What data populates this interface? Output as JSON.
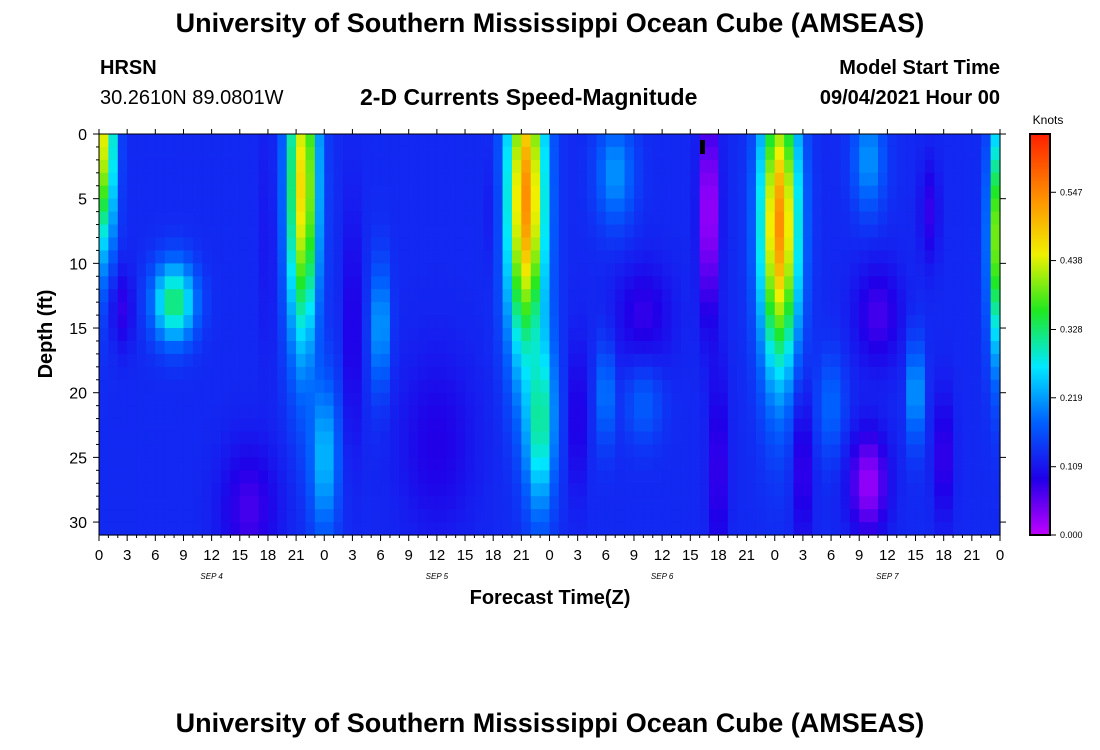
{
  "header": {
    "title": "University of Southern Mississippi Ocean Cube (AMSEAS)",
    "footer_title": "University of Southern Mississippi Ocean Cube (AMSEAS)",
    "station_name": "HRSN",
    "station_coords": "30.2610N  89.0801W",
    "plot_title": "2-D Currents Speed-Magnitude",
    "model_label": "Model Start Time",
    "model_time": "09/04/2021 Hour 00"
  },
  "chart_data": {
    "type": "heatmap",
    "title": "2-D Currents Speed-Magnitude",
    "xlabel": "Forecast Time(Z)",
    "ylabel": "Depth (ft)",
    "xlim": [
      0,
      96
    ],
    "ylim": [
      0,
      31
    ],
    "y_inverted": true,
    "x_tick_labels": [
      "0",
      "3",
      "6",
      "9",
      "12",
      "15",
      "18",
      "21",
      "0",
      "3",
      "6",
      "9",
      "12",
      "15",
      "18",
      "21",
      "0",
      "3",
      "6",
      "9",
      "12",
      "15",
      "18",
      "21",
      "0",
      "3",
      "6",
      "9",
      "12",
      "15",
      "18",
      "21",
      "0"
    ],
    "y_ticks": [
      0,
      5,
      10,
      15,
      20,
      25,
      30
    ],
    "day_labels": [
      {
        "label": "SEP 4",
        "hour": 12
      },
      {
        "label": "SEP 5",
        "hour": 36
      },
      {
        "label": "SEP 6",
        "hour": 60
      },
      {
        "label": "SEP 7",
        "hour": 84
      }
    ],
    "colorbar": {
      "unit": "Knots",
      "ticks": [
        "0.547",
        "0.438",
        "0.328",
        "0.219",
        "0.109",
        "0.000"
      ],
      "tick_values": [
        0.547,
        0.438,
        0.328,
        0.219,
        0.109,
        0.0
      ],
      "max": 0.64
    },
    "features": [
      {
        "hour": 0.5,
        "depth": 0,
        "speed": 0.45,
        "sx": 1.2,
        "sy": 9
      },
      {
        "hour": 2.5,
        "depth": 13.5,
        "speed": 0.08,
        "sx": 1.2,
        "sy": 3
      },
      {
        "hour": 8,
        "depth": 13,
        "speed": 0.34,
        "sx": 2.2,
        "sy": 3
      },
      {
        "hour": 16,
        "depth": 29,
        "speed": 0.07,
        "sx": 3,
        "sy": 5
      },
      {
        "hour": 18,
        "depth": 8,
        "speed": 0.1,
        "sx": 0.6,
        "sy": 10
      },
      {
        "hour": 21.7,
        "depth": 4,
        "speed": 0.48,
        "sx": 1.6,
        "sy": 12
      },
      {
        "hour": 24,
        "depth": 25,
        "speed": 0.25,
        "sx": 1.5,
        "sy": 6
      },
      {
        "hour": 27,
        "depth": 15,
        "speed": 0.07,
        "sx": 0.7,
        "sy": 9
      },
      {
        "hour": 30,
        "depth": 15,
        "speed": 0.24,
        "sx": 1,
        "sy": 5
      },
      {
        "hour": 36,
        "depth": 24,
        "speed": 0.09,
        "sx": 4,
        "sy": 7
      },
      {
        "hour": 42,
        "depth": 6,
        "speed": 0.1,
        "sx": 0.7,
        "sy": 5
      },
      {
        "hour": 45.5,
        "depth": 5,
        "speed": 0.55,
        "sx": 2,
        "sy": 12
      },
      {
        "hour": 47,
        "depth": 22,
        "speed": 0.33,
        "sx": 1.5,
        "sy": 7
      },
      {
        "hour": 51,
        "depth": 22,
        "speed": 0.07,
        "sx": 0.7,
        "sy": 6
      },
      {
        "hour": 54,
        "depth": 20,
        "speed": 0.22,
        "sx": 0.8,
        "sy": 4
      },
      {
        "hour": 58,
        "depth": 14,
        "speed": 0.08,
        "sx": 3,
        "sy": 4
      },
      {
        "hour": 58,
        "depth": 21,
        "speed": 0.18,
        "sx": 2,
        "sy": 3
      },
      {
        "hour": 55,
        "depth": 3,
        "speed": 0.22,
        "sx": 2,
        "sy": 4
      },
      {
        "hour": 65,
        "depth": 6,
        "speed": 0.0,
        "sx": 1,
        "sy": 8
      },
      {
        "hour": 66,
        "depth": 26,
        "speed": 0.07,
        "sx": 1,
        "sy": 8
      },
      {
        "hour": 72.5,
        "depth": 7,
        "speed": 0.55,
        "sx": 2,
        "sy": 11
      },
      {
        "hour": 75,
        "depth": 26,
        "speed": 0.07,
        "sx": 1,
        "sy": 6
      },
      {
        "hour": 78,
        "depth": 21,
        "speed": 0.19,
        "sx": 1.5,
        "sy": 4
      },
      {
        "hour": 82,
        "depth": 27,
        "speed": 0.02,
        "sx": 2,
        "sy": 4
      },
      {
        "hour": 83,
        "depth": 14,
        "speed": 0.07,
        "sx": 2.5,
        "sy": 4
      },
      {
        "hour": 82,
        "depth": 2,
        "speed": 0.22,
        "sx": 1.7,
        "sy": 4
      },
      {
        "hour": 87,
        "depth": 20,
        "speed": 0.25,
        "sx": 0.8,
        "sy": 4
      },
      {
        "hour": 88.5,
        "depth": 6,
        "speed": 0.08,
        "sx": 1,
        "sy": 4
      },
      {
        "hour": 90,
        "depth": 25,
        "speed": 0.07,
        "sx": 1,
        "sy": 5
      },
      {
        "hour": 95.5,
        "depth": 8,
        "speed": 0.4,
        "sx": 0.8,
        "sy": 9
      }
    ],
    "background_speed": 0.13,
    "colormap": [
      "#c000ff",
      "#2000e8",
      "#0060ff",
      "#00e8ff",
      "#20e820",
      "#f0f000",
      "#ff9000",
      "#ff2000"
    ]
  }
}
